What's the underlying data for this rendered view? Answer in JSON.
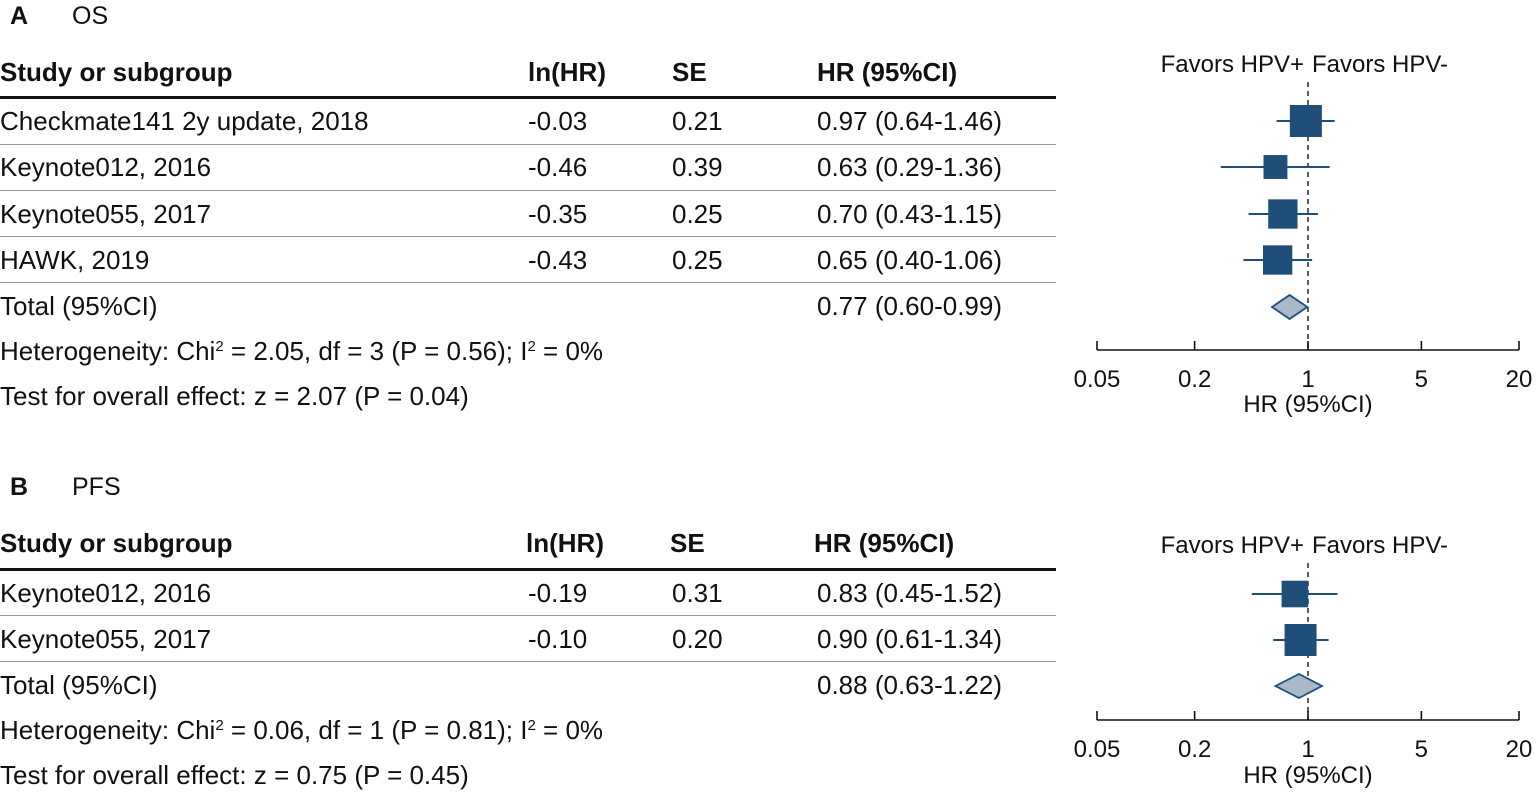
{
  "chart_data": [
    {
      "type": "forest",
      "panel_letter": "A",
      "panel_title": "OS",
      "columns": [
        "Study or subgroup",
        "ln(HR)",
        "SE",
        "HR (95%CI)"
      ],
      "studies": [
        {
          "name": "Checkmate141 2y update, 2018",
          "lnhr": "-0.03",
          "se": "0.21",
          "hr_text": "0.97 (0.64-1.46)",
          "hr": 0.97,
          "lo": 0.64,
          "hi": 1.46,
          "weight": 1.0
        },
        {
          "name": "Keynote012, 2016",
          "lnhr": "-0.46",
          "se": "0.39",
          "hr_text": "0.63 (0.29-1.36)",
          "hr": 0.63,
          "lo": 0.29,
          "hi": 1.36,
          "weight": 0.55
        },
        {
          "name": "Keynote055, 2017",
          "lnhr": "-0.35",
          "se": "0.25",
          "hr_text": "0.70 (0.43-1.15)",
          "hr": 0.7,
          "lo": 0.43,
          "hi": 1.15,
          "weight": 0.85
        },
        {
          "name": "HAWK, 2019",
          "lnhr": "-0.43",
          "se": "0.25",
          "hr_text": "0.65 (0.40-1.06)",
          "hr": 0.65,
          "lo": 0.4,
          "hi": 1.06,
          "weight": 0.85
        }
      ],
      "total": {
        "name": "Total (95%CI)",
        "hr_text": "0.77 (0.60-0.99)",
        "hr": 0.77,
        "lo": 0.6,
        "hi": 0.99
      },
      "heterogeneity": {
        "prefix": "Heterogeneity: Chi",
        "sup1": "2",
        "middle": " = 2.05, df = 3 (P = 0.56); I",
        "sup2": "2",
        "suffix": " = 0%"
      },
      "overall_effect": "Test for overall effect: z = 2.07 (P = 0.04)",
      "favors_left": "Favors HPV+",
      "favors_right": "Favors HPV-",
      "xlabel": "HR (95%CI)",
      "xticks": [
        "0.05",
        "0.2",
        "1",
        "5",
        "20"
      ],
      "xlim": [
        0.05,
        20
      ],
      "x_scale": "log",
      "reference_line": 1
    },
    {
      "type": "forest",
      "panel_letter": "B",
      "panel_title": "PFS",
      "columns": [
        "Study or subgroup",
        "ln(HR)",
        "SE",
        "HR (95%CI)"
      ],
      "studies": [
        {
          "name": "Keynote012, 2016",
          "lnhr": "-0.19",
          "se": "0.31",
          "hr_text": "0.83 (0.45-1.52)",
          "hr": 0.83,
          "lo": 0.45,
          "hi": 1.52,
          "weight": 0.7
        },
        {
          "name": "Keynote055, 2017",
          "lnhr": "-0.10",
          "se": "0.20",
          "hr_text": "0.90 (0.61-1.34)",
          "hr": 0.9,
          "lo": 0.61,
          "hi": 1.34,
          "weight": 1.0
        }
      ],
      "total": {
        "name": "Total (95%CI)",
        "hr_text": "0.88 (0.63-1.22)",
        "hr": 0.88,
        "lo": 0.63,
        "hi": 1.22
      },
      "heterogeneity": {
        "prefix": "Heterogeneity: Chi",
        "sup1": "2",
        "middle": " = 0.06, df = 1 (P = 0.81); I",
        "sup2": "2",
        "suffix": " = 0%"
      },
      "overall_effect": "Test for overall effect: z = 0.75 (P = 0.45)",
      "favors_left": "Favors HPV+",
      "favors_right": "Favors HPV-",
      "xlabel": "HR (95%CI)",
      "xticks": [
        "0.05",
        "0.2",
        "1",
        "5",
        "20"
      ],
      "xlim": [
        0.05,
        20
      ],
      "x_scale": "log",
      "reference_line": 1
    }
  ],
  "colors": {
    "marker": "#1f4e79",
    "diamond_fill": "#a9b9c9",
    "diamond_stroke": "#1f4e79",
    "axis": "#111111",
    "reference": "#333333"
  }
}
